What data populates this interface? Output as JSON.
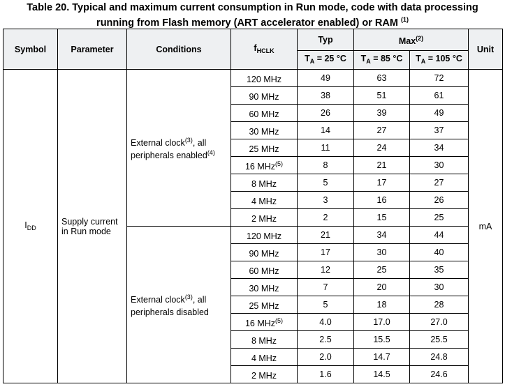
{
  "caption": {
    "line1": "Table 20. Typical and maximum current consumption in Run mode, code with data processing",
    "line2": "running from Flash memory (ART accelerator enabled) or RAM",
    "note": "(1)"
  },
  "headers": {
    "symbol": "Symbol",
    "parameter": "Parameter",
    "conditions": "Conditions",
    "fhclk_main": "f",
    "fhclk_sub": "HCLK",
    "typ": "Typ",
    "max": "Max",
    "max_note": "(2)",
    "unit": "Unit",
    "ta25": "T",
    "ta25_sub": "A",
    "ta25_rest": " = 25 °C",
    "ta85": "T",
    "ta85_sub": "A",
    "ta85_rest": " = 85 °C",
    "ta105": "T",
    "ta105_sub": "A",
    "ta105_rest": " = 105 °C"
  },
  "symbol": {
    "main": "I",
    "sub": "DD"
  },
  "parameter": {
    "line1": "Supply current",
    "line2": "in Run mode"
  },
  "unit": "mA",
  "conditions": [
    {
      "line1": "External clock",
      "note1": "(3)",
      "line1b": ", all",
      "line2": "peripherals enabled",
      "note2": "(4)"
    },
    {
      "line1": "External clock",
      "note1": "(3)",
      "line1b": ", all",
      "line2": "peripherals disabled",
      "note2": ""
    }
  ],
  "enabled_rows": [
    {
      "f": "120 MHz",
      "note": "",
      "typ": "49",
      "m85": "63",
      "m105": "72"
    },
    {
      "f": "90 MHz",
      "note": "",
      "typ": "38",
      "m85": "51",
      "m105": "61"
    },
    {
      "f": "60 MHz",
      "note": "",
      "typ": "26",
      "m85": "39",
      "m105": "49"
    },
    {
      "f": "30 MHz",
      "note": "",
      "typ": "14",
      "m85": "27",
      "m105": "37"
    },
    {
      "f": "25 MHz",
      "note": "",
      "typ": "11",
      "m85": "24",
      "m105": "34"
    },
    {
      "f": "16 MHz",
      "note": "(5)",
      "typ": "8",
      "m85": "21",
      "m105": "30"
    },
    {
      "f": "8 MHz",
      "note": "",
      "typ": "5",
      "m85": "17",
      "m105": "27"
    },
    {
      "f": "4 MHz",
      "note": "",
      "typ": "3",
      "m85": "16",
      "m105": "26"
    },
    {
      "f": "2 MHz",
      "note": "",
      "typ": "2",
      "m85": "15",
      "m105": "25"
    }
  ],
  "disabled_rows": [
    {
      "f": "120 MHz",
      "note": "",
      "typ": "21",
      "m85": "34",
      "m105": "44"
    },
    {
      "f": "90 MHz",
      "note": "",
      "typ": "17",
      "m85": "30",
      "m105": "40"
    },
    {
      "f": "60 MHz",
      "note": "",
      "typ": "12",
      "m85": "25",
      "m105": "35"
    },
    {
      "f": "30 MHz",
      "note": "",
      "typ": "7",
      "m85": "20",
      "m105": "30"
    },
    {
      "f": "25 MHz",
      "note": "",
      "typ": "5",
      "m85": "18",
      "m105": "28"
    },
    {
      "f": "16 MHz",
      "note": "(5)",
      "typ": "4.0",
      "m85": "17.0",
      "m105": "27.0"
    },
    {
      "f": "8 MHz",
      "note": "",
      "typ": "2.5",
      "m85": "15.5",
      "m105": "25.5"
    },
    {
      "f": "4 MHz",
      "note": "",
      "typ": "2.0",
      "m85": "14.7",
      "m105": "24.8"
    },
    {
      "f": "2 MHz",
      "note": "",
      "typ": "1.6",
      "m85": "14.5",
      "m105": "24.6"
    }
  ]
}
